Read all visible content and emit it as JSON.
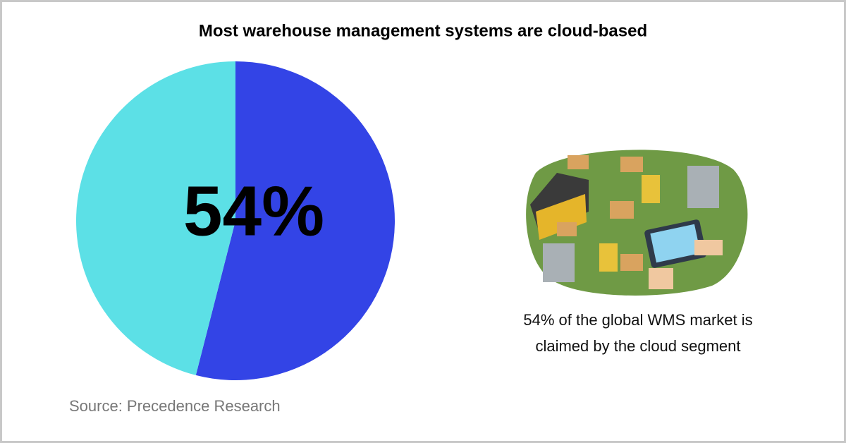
{
  "chart_data": {
    "type": "pie",
    "title": "Most warehouse management systems are cloud-based",
    "categories": [
      null,
      null
    ],
    "values": [
      54,
      46
    ],
    "value_labels": [
      "54%",
      null
    ],
    "colors": [
      "#3344e6",
      "#5ce0e6"
    ],
    "annotation": [
      "54% of the global WMS market is",
      "claimed by the cloud segment"
    ],
    "source": "Source: Precedence Research"
  }
}
